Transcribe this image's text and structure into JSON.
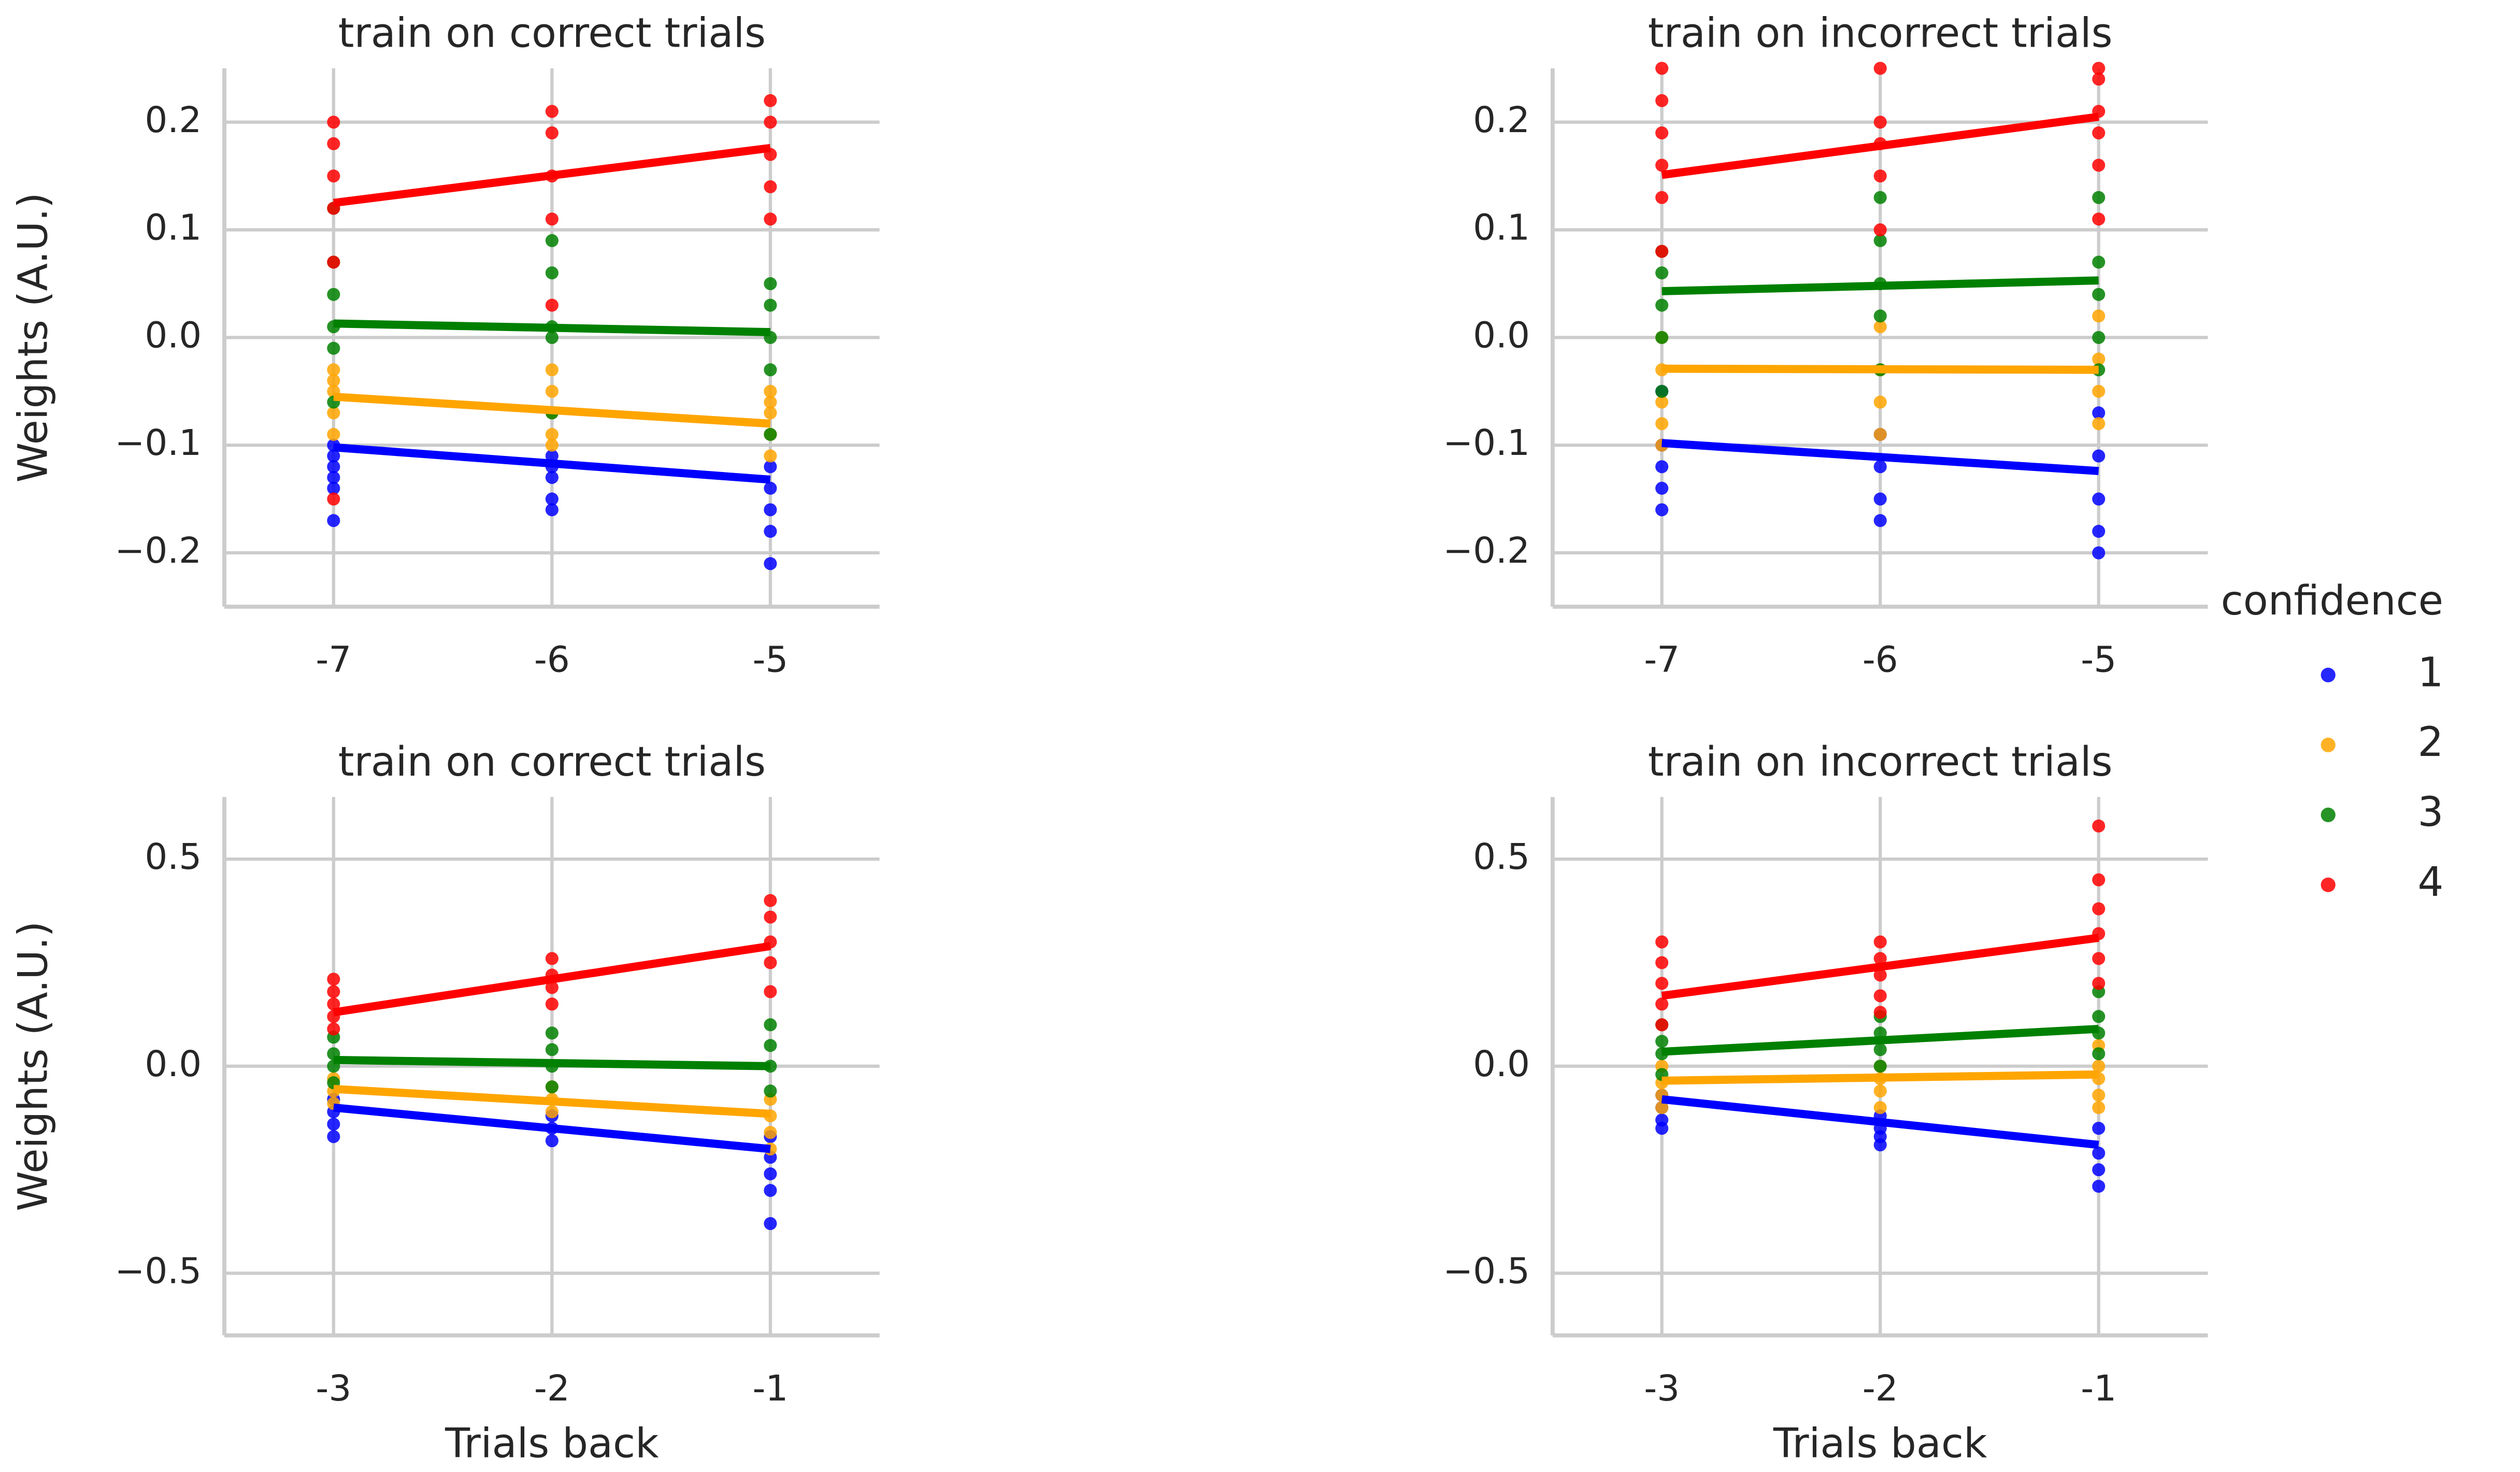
{
  "chart_data": [
    {
      "type": "scatter",
      "title": "train on correct trials",
      "ylabel": "Weights (A.U.)",
      "xlim": [
        -7.5,
        -4.5
      ],
      "ylim": [
        -0.25,
        0.25
      ],
      "xticks": [
        -7,
        -6,
        -5
      ],
      "yticks": [
        {
          "value": -0.2,
          "label": "−0.2"
        },
        {
          "value": -0.1,
          "label": "−0.1"
        },
        {
          "value": 0,
          "label": "0.0"
        },
        0.1,
        0.2
      ],
      "grid": true,
      "series": [
        {
          "color": "#0000ff",
          "x": [
            -7,
            -7,
            -7,
            -7,
            -7,
            -7,
            -6,
            -6,
            -6,
            -6,
            -6,
            -5,
            -5,
            -5,
            -5,
            -5
          ],
          "values": [
            -0.1,
            -0.12,
            -0.14,
            -0.13,
            -0.17,
            -0.11,
            -0.11,
            -0.13,
            -0.15,
            -0.16,
            -0.12,
            -0.12,
            -0.14,
            -0.16,
            -0.18,
            -0.21
          ],
          "fit": {
            "x": [
              -7,
              -5
            ],
            "y": [
              -0.102,
              -0.132
            ]
          }
        },
        {
          "color": "#ffa500",
          "x": [
            -7,
            -7,
            -7,
            -7,
            -7,
            -6,
            -6,
            -6,
            -6,
            -6,
            -5,
            -5,
            -5,
            -5,
            -5
          ],
          "values": [
            -0.03,
            -0.05,
            -0.07,
            -0.09,
            -0.04,
            -0.03,
            -0.05,
            -0.07,
            -0.1,
            -0.09,
            -0.05,
            -0.07,
            -0.09,
            -0.11,
            -0.06
          ],
          "fit": {
            "x": [
              -7,
              -5
            ],
            "y": [
              -0.055,
              -0.08
            ]
          }
        },
        {
          "color": "#008000",
          "x": [
            -7,
            -7,
            -7,
            -7,
            -7,
            -7,
            -6,
            -6,
            -6,
            -6,
            -6,
            -5,
            -5,
            -5,
            -5,
            -5
          ],
          "values": [
            0.12,
            0.04,
            0.01,
            -0.01,
            -0.06,
            0.07,
            0.09,
            0.06,
            0.01,
            0.0,
            -0.07,
            0.05,
            0.03,
            0.0,
            -0.03,
            -0.09
          ],
          "fit": {
            "x": [
              -7,
              -5
            ],
            "y": [
              0.013,
              0.005
            ]
          }
        },
        {
          "color": "#ff0000",
          "x": [
            -7,
            -7,
            -7,
            -7,
            -7,
            -7,
            -6,
            -6,
            -6,
            -6,
            -6,
            -5,
            -5,
            -5,
            -5,
            -5
          ],
          "values": [
            0.2,
            0.18,
            0.15,
            0.12,
            0.07,
            -0.15,
            0.21,
            0.19,
            0.15,
            0.11,
            0.03,
            0.22,
            0.2,
            0.17,
            0.14,
            0.11
          ],
          "fit": {
            "x": [
              -7,
              -5
            ],
            "y": [
              0.125,
              0.176
            ]
          }
        }
      ]
    },
    {
      "type": "scatter",
      "title": "train on incorrect trials",
      "xlim": [
        -7.5,
        -4.5
      ],
      "ylim": [
        -0.25,
        0.25
      ],
      "xticks": [
        -7,
        -6,
        -5
      ],
      "yticks": [
        {
          "value": -0.2,
          "label": "−0.2"
        },
        {
          "value": -0.1,
          "label": "−0.1"
        },
        {
          "value": 0,
          "label": "0.0"
        },
        0.1,
        0.2
      ],
      "grid": true,
      "series": [
        {
          "color": "#0000ff",
          "x": [
            -7,
            -7,
            -7,
            -7,
            -7,
            -6,
            -6,
            -6,
            -6,
            -5,
            -5,
            -5,
            -5,
            -5
          ],
          "values": [
            -0.1,
            -0.12,
            -0.14,
            -0.16,
            -0.05,
            -0.09,
            -0.12,
            -0.15,
            -0.17,
            -0.07,
            -0.11,
            -0.15,
            -0.18,
            -0.2
          ],
          "fit": {
            "x": [
              -7,
              -5
            ],
            "y": [
              -0.098,
              -0.124
            ]
          }
        },
        {
          "color": "#ffa500",
          "x": [
            -7,
            -7,
            -7,
            -7,
            -7,
            -6,
            -6,
            -6,
            -6,
            -5,
            -5,
            -5,
            -5
          ],
          "values": [
            0.0,
            -0.03,
            -0.06,
            -0.08,
            -0.1,
            0.01,
            -0.03,
            -0.06,
            -0.09,
            0.02,
            -0.02,
            -0.05,
            -0.08
          ],
          "fit": {
            "x": [
              -7,
              -5
            ],
            "y": [
              -0.029,
              -0.03
            ]
          }
        },
        {
          "color": "#008000",
          "x": [
            -7,
            -7,
            -7,
            -7,
            -7,
            -6,
            -6,
            -6,
            -6,
            -6,
            -5,
            -5,
            -5,
            -5,
            -5
          ],
          "values": [
            0.08,
            0.06,
            0.03,
            0.0,
            -0.05,
            0.13,
            0.09,
            0.05,
            0.02,
            -0.03,
            0.13,
            0.07,
            0.04,
            0.0,
            -0.03
          ],
          "fit": {
            "x": [
              -7,
              -5
            ],
            "y": [
              0.043,
              0.053
            ]
          }
        },
        {
          "color": "#ff0000",
          "x": [
            -7,
            -7,
            -7,
            -7,
            -7,
            -7,
            -6,
            -6,
            -6,
            -6,
            -6,
            -5,
            -5,
            -5,
            -5,
            -5,
            -5
          ],
          "values": [
            0.25,
            0.22,
            0.19,
            0.16,
            0.13,
            0.08,
            0.25,
            0.2,
            0.18,
            0.15,
            0.1,
            0.25,
            0.24,
            0.21,
            0.19,
            0.16,
            0.11
          ],
          "fit": {
            "x": [
              -7,
              -5
            ],
            "y": [
              0.151,
              0.205
            ]
          }
        }
      ]
    },
    {
      "type": "scatter",
      "title": "train on correct trials",
      "ylabel": "Weights (A.U.)",
      "xlabel": "Trials back",
      "xlim": [
        -3.5,
        -0.5
      ],
      "ylim": [
        -0.65,
        0.65
      ],
      "xticks": [
        -3,
        -2,
        -1
      ],
      "yticks": [
        {
          "value": -0.5,
          "label": "−0.5"
        },
        {
          "value": 0,
          "label": "0.0"
        },
        0.5
      ],
      "grid": true,
      "series": [
        {
          "color": "#0000ff",
          "x": [
            -3,
            -3,
            -3,
            -3,
            -2,
            -2,
            -2,
            -1,
            -1,
            -1,
            -1,
            -1
          ],
          "values": [
            -0.08,
            -0.11,
            -0.14,
            -0.17,
            -0.12,
            -0.15,
            -0.18,
            -0.17,
            -0.22,
            -0.26,
            -0.3,
            -0.38
          ],
          "fit": {
            "x": [
              -3,
              -1
            ],
            "y": [
              -0.1,
              -0.2
            ]
          }
        },
        {
          "color": "#ffa500",
          "x": [
            -3,
            -3,
            -3,
            -2,
            -2,
            -2,
            -1,
            -1,
            -1,
            -1
          ],
          "values": [
            -0.03,
            -0.06,
            -0.09,
            -0.05,
            -0.08,
            -0.11,
            -0.08,
            -0.12,
            -0.16,
            -0.2
          ],
          "fit": {
            "x": [
              -3,
              -1
            ],
            "y": [
              -0.055,
              -0.115
            ]
          }
        },
        {
          "color": "#008000",
          "x": [
            -3,
            -3,
            -3,
            -3,
            -2,
            -2,
            -2,
            -2,
            -1,
            -1,
            -1,
            -1
          ],
          "values": [
            0.07,
            0.03,
            0.0,
            -0.04,
            0.08,
            0.04,
            0.0,
            -0.05,
            0.1,
            0.05,
            0.0,
            -0.06
          ],
          "fit": {
            "x": [
              -3,
              -1
            ],
            "y": [
              0.015,
              0.0
            ]
          }
        },
        {
          "color": "#ff0000",
          "x": [
            -3,
            -3,
            -3,
            -3,
            -3,
            -2,
            -2,
            -2,
            -2,
            -1,
            -1,
            -1,
            -1,
            -1
          ],
          "values": [
            0.21,
            0.18,
            0.15,
            0.12,
            0.09,
            0.26,
            0.22,
            0.19,
            0.15,
            0.4,
            0.36,
            0.3,
            0.25,
            0.18
          ],
          "fit": {
            "x": [
              -3,
              -1
            ],
            "y": [
              0.13,
              0.29
            ]
          }
        }
      ]
    },
    {
      "type": "scatter",
      "title": "train on incorrect trials",
      "xlabel": "Trials back",
      "xlim": [
        -3.5,
        -0.5
      ],
      "ylim": [
        -0.65,
        0.65
      ],
      "xticks": [
        -3,
        -2,
        -1
      ],
      "yticks": [
        {
          "value": -0.5,
          "label": "−0.5"
        },
        {
          "value": 0,
          "label": "0.0"
        },
        0.5
      ],
      "grid": true,
      "series": [
        {
          "color": "#0000ff",
          "x": [
            -3,
            -3,
            -3,
            -3,
            -2,
            -2,
            -2,
            -2,
            -1,
            -1,
            -1,
            -1
          ],
          "values": [
            -0.07,
            -0.1,
            -0.13,
            -0.15,
            -0.12,
            -0.15,
            -0.17,
            -0.19,
            -0.15,
            -0.21,
            -0.25,
            -0.29
          ],
          "fit": {
            "x": [
              -3,
              -1
            ],
            "y": [
              -0.08,
              -0.19
            ]
          }
        },
        {
          "color": "#ffa500",
          "x": [
            -3,
            -3,
            -3,
            -3,
            -2,
            -2,
            -2,
            -2,
            -1,
            -1,
            -1,
            -1,
            -1
          ],
          "values": [
            0.0,
            -0.04,
            -0.07,
            -0.1,
            0.0,
            -0.03,
            -0.06,
            -0.1,
            0.05,
            0.0,
            -0.03,
            -0.07,
            -0.1
          ],
          "fit": {
            "x": [
              -3,
              -1
            ],
            "y": [
              -0.035,
              -0.02
            ]
          }
        },
        {
          "color": "#008000",
          "x": [
            -3,
            -3,
            -3,
            -3,
            -2,
            -2,
            -2,
            -2,
            -1,
            -1,
            -1,
            -1
          ],
          "values": [
            0.1,
            0.06,
            0.03,
            -0.02,
            0.12,
            0.08,
            0.04,
            0.0,
            0.18,
            0.12,
            0.08,
            0.03
          ],
          "fit": {
            "x": [
              -3,
              -1
            ],
            "y": [
              0.035,
              0.09
            ]
          }
        },
        {
          "color": "#ff0000",
          "x": [
            -3,
            -3,
            -3,
            -3,
            -3,
            -2,
            -2,
            -2,
            -2,
            -2,
            -1,
            -1,
            -1,
            -1,
            -1,
            -1
          ],
          "values": [
            0.3,
            0.25,
            0.2,
            0.15,
            0.1,
            0.3,
            0.26,
            0.22,
            0.17,
            0.13,
            0.58,
            0.45,
            0.38,
            0.32,
            0.26,
            0.2
          ],
          "fit": {
            "x": [
              -3,
              -1
            ],
            "y": [
              0.17,
              0.31
            ]
          }
        }
      ]
    }
  ],
  "legend": {
    "title": "confidence",
    "items": [
      {
        "name": "1",
        "color": "#0000ff"
      },
      {
        "name": "2",
        "color": "#ffa500"
      },
      {
        "name": "3",
        "color": "#008000"
      },
      {
        "name": "4",
        "color": "#ff0000"
      }
    ]
  }
}
